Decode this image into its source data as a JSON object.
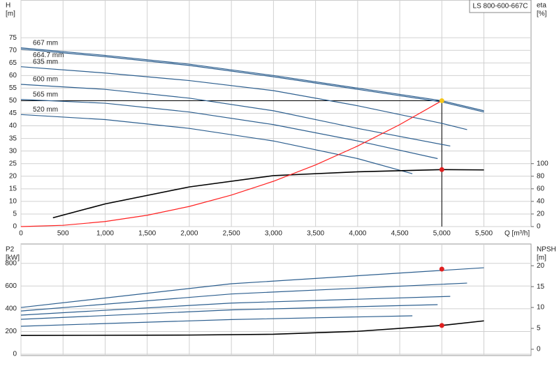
{
  "chart_data": [
    {
      "type": "line",
      "title": "LS 800-600-667C",
      "y_label": "H",
      "y_unit": "[m]",
      "y2_label": "eta",
      "y2_unit": "[%]",
      "x_label": "Q [m³/h]",
      "xlim": [
        0,
        6060
      ],
      "xticks": [
        0,
        500,
        {
          "value": 1000,
          "label": "1,000"
        },
        {
          "value": 1500,
          "label": "1,500"
        },
        {
          "value": 2000,
          "label": "2,000"
        },
        {
          "value": 2500,
          "label": "2,500"
        },
        {
          "value": 3000,
          "label": "3,000"
        },
        {
          "value": 3500,
          "label": "3,500"
        },
        {
          "value": 4000,
          "label": "4,000"
        },
        {
          "value": 4500,
          "label": "4,500"
        },
        {
          "value": 5000,
          "label": "5,000"
        },
        {
          "value": 5500,
          "label": "5,500"
        }
      ],
      "ylim": [
        0,
        90
      ],
      "yticks": [
        0,
        5,
        10,
        15,
        20,
        25,
        30,
        35,
        40,
        45,
        50,
        55,
        60,
        65,
        70,
        75
      ],
      "y2lim": [
        0,
        360
      ],
      "y2ticks": [
        0,
        20,
        40,
        60,
        80,
        100
      ],
      "grid": true,
      "series": [
        {
          "name": "667 mm",
          "color": "#2d5f8f",
          "x": [
            0,
            1000,
            2000,
            3000,
            4000,
            5000,
            5500
          ],
          "values": [
            71,
            68,
            64.5,
            60,
            55,
            50,
            46
          ]
        },
        {
          "name": "664.7 mm",
          "color": "#2d5f8f",
          "x": [
            0,
            1000,
            2000,
            3000,
            4000,
            5000,
            5500
          ],
          "values": [
            70.5,
            67.5,
            64,
            59.5,
            54.5,
            49.5,
            45.5
          ]
        },
        {
          "name": "635 mm",
          "color": "#2d5f8f",
          "x": [
            0,
            1000,
            2000,
            3000,
            4000,
            5000,
            5300
          ],
          "values": [
            63.5,
            61,
            58,
            54,
            48,
            41,
            38.5
          ]
        },
        {
          "name": "600 mm",
          "color": "#2d5f8f",
          "x": [
            0,
            1000,
            2000,
            3000,
            4000,
            5100
          ],
          "values": [
            56.5,
            54.5,
            51,
            46,
            39,
            32
          ]
        },
        {
          "name": "565 mm",
          "color": "#2d5f8f",
          "x": [
            0,
            1000,
            2000,
            3000,
            4000,
            4950
          ],
          "values": [
            50.5,
            49,
            45.5,
            40.5,
            34,
            27
          ]
        },
        {
          "name": "520 mm",
          "color": "#2d5f8f",
          "x": [
            0,
            1000,
            2000,
            3000,
            4000,
            4650
          ],
          "values": [
            44.5,
            42.5,
            39,
            34,
            27,
            21
          ]
        },
        {
          "color": "#000000",
          "axis": "y2",
          "x": [
            380,
            1000,
            2000,
            3000,
            4000,
            5000,
            5500
          ],
          "values": [
            14,
            36,
            63,
            81,
            87,
            90.5,
            90
          ]
        },
        {
          "color": "#ff2020",
          "x": [
            0,
            500,
            1000,
            1500,
            2000,
            2500,
            3000,
            3500,
            4000,
            4500,
            5000
          ],
          "values": [
            0,
            0.5,
            2,
            4.5,
            8,
            12.5,
            18,
            24.5,
            32,
            40.5,
            50
          ]
        }
      ],
      "points": [
        {
          "x": 5000,
          "y": 50,
          "color": "#f5c518",
          "guide": true
        },
        {
          "x": 5000,
          "y": 90.5,
          "axis": "y2",
          "color": "#e02020"
        }
      ]
    },
    {
      "type": "line",
      "y_label": "P2",
      "y_unit": "[kW]",
      "y2_label": "NPSH",
      "y2_unit": "[m]",
      "xlim": [
        0,
        6060
      ],
      "xticks": [
        0,
        500,
        1000,
        1500,
        2000,
        2500,
        3000,
        3500,
        4000,
        4500,
        5000,
        5500
      ],
      "ylim": [
        -12,
        970
      ],
      "yticks": [
        0,
        200,
        400,
        600,
        800
      ],
      "y2lim": [
        -1.5,
        25.2
      ],
      "y2ticks": [
        0,
        5,
        10,
        15,
        20
      ],
      "grid": true,
      "series": [
        {
          "color": "#2d5f8f",
          "x": [
            0,
            2500,
            5500
          ],
          "values": [
            411,
            620,
            761
          ]
        },
        {
          "color": "#2d5f8f",
          "x": [
            0,
            2500,
            5300
          ],
          "values": [
            380,
            530,
            626
          ]
        },
        {
          "color": "#2d5f8f",
          "x": [
            0,
            2500,
            5100
          ],
          "values": [
            344,
            450,
            509
          ]
        },
        {
          "color": "#2d5f8f",
          "x": [
            0,
            2500,
            4950
          ],
          "values": [
            307,
            390,
            436
          ]
        },
        {
          "color": "#2d5f8f",
          "x": [
            0,
            2500,
            4650
          ],
          "values": [
            246,
            305,
            338
          ]
        },
        {
          "color": "#000000",
          "axis": "y2",
          "x": [
            0,
            2000,
            3000,
            4000,
            5000,
            5500
          ],
          "values": [
            3.3,
            3.4,
            3.6,
            4.3,
            5.7,
            6.8
          ]
        }
      ],
      "points": [
        {
          "x": 5000,
          "y": 749,
          "color": "#e02020"
        },
        {
          "x": 5000,
          "y": 5.7,
          "axis": "y2",
          "color": "#e02020"
        }
      ]
    }
  ]
}
